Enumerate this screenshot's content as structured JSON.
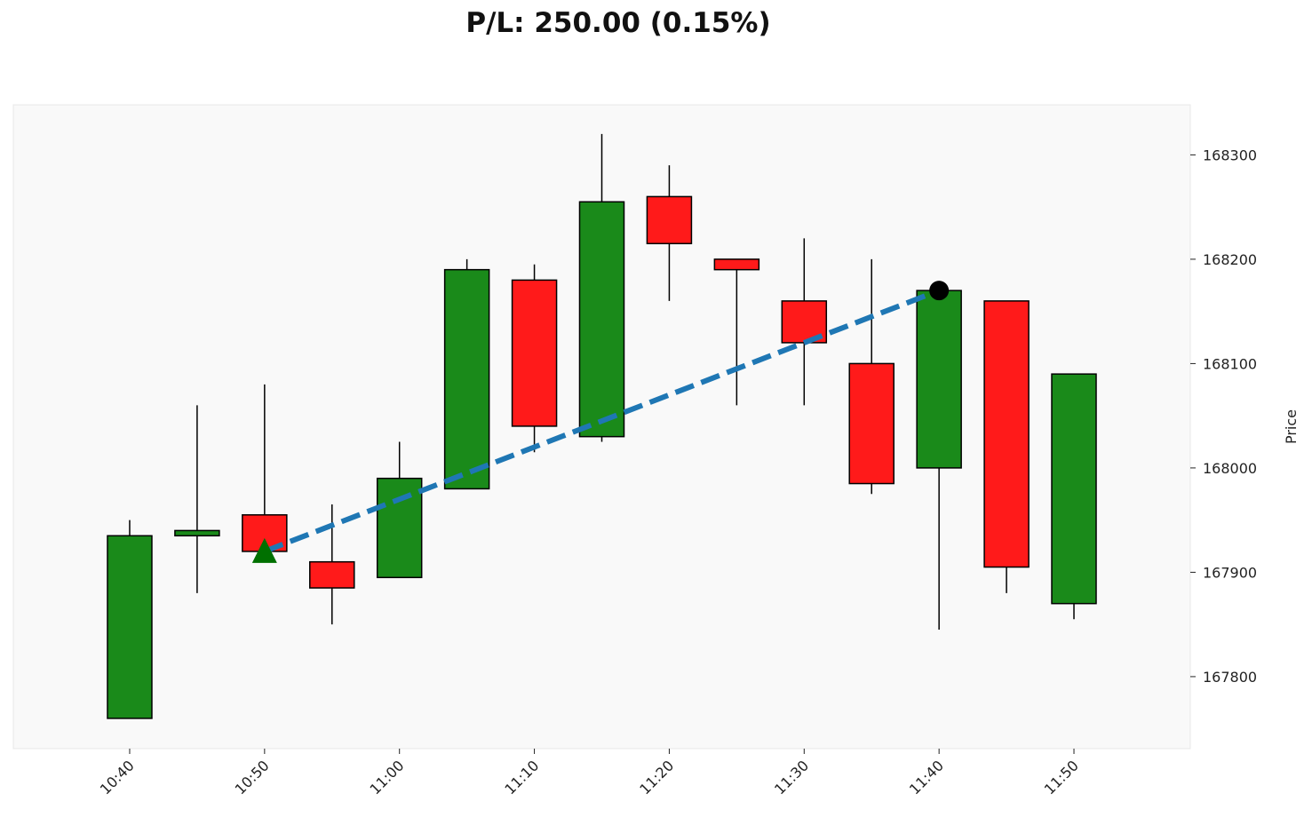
{
  "chart_data": {
    "type": "candlestick",
    "title": "P/L: 250.00 (0.15%)",
    "ylabel": "Price",
    "xlabel": "",
    "ylim": [
      167731,
      168348
    ],
    "x_tick_labels": [
      "10:40",
      "10:50",
      "11:00",
      "11:10",
      "11:20",
      "11:30",
      "11:40",
      "11:50"
    ],
    "y_ticks": [
      167800,
      167900,
      168000,
      168100,
      168200,
      168300
    ],
    "candles": [
      {
        "time": "10:40",
        "open": 167760,
        "high": 167950,
        "low": 167760,
        "close": 167935
      },
      {
        "time": "10:45",
        "open": 167935,
        "high": 168060,
        "low": 167880,
        "close": 167940
      },
      {
        "time": "10:50",
        "open": 167955,
        "high": 168080,
        "low": 167920,
        "close": 167920
      },
      {
        "time": "10:55",
        "open": 167910,
        "high": 167965,
        "low": 167850,
        "close": 167885
      },
      {
        "time": "11:00",
        "open": 167895,
        "high": 168025,
        "low": 167895,
        "close": 167990
      },
      {
        "time": "11:05",
        "open": 167980,
        "high": 168200,
        "low": 167980,
        "close": 168190
      },
      {
        "time": "11:10",
        "open": 168180,
        "high": 168195,
        "low": 168015,
        "close": 168040
      },
      {
        "time": "11:15",
        "open": 168030,
        "high": 168320,
        "low": 168025,
        "close": 168255
      },
      {
        "time": "11:20",
        "open": 168260,
        "high": 168290,
        "low": 168160,
        "close": 168215
      },
      {
        "time": "11:25",
        "open": 168200,
        "high": 168200,
        "low": 168060,
        "close": 168190
      },
      {
        "time": "11:30",
        "open": 168160,
        "high": 168220,
        "low": 168060,
        "close": 168120
      },
      {
        "time": "11:35",
        "open": 168100,
        "high": 168200,
        "low": 167975,
        "close": 167985
      },
      {
        "time": "11:40",
        "open": 168000,
        "high": 168170,
        "low": 167845,
        "close": 168170
      },
      {
        "time": "11:45",
        "open": 168160,
        "high": 168160,
        "low": 167880,
        "close": 167905
      },
      {
        "time": "11:50",
        "open": 167870,
        "high": 168090,
        "low": 167855,
        "close": 168090
      }
    ],
    "entry": {
      "time": "10:50",
      "price": 167920,
      "marker": "triangle-up"
    },
    "exit": {
      "time": "11:40",
      "price": 168170,
      "marker": "circle"
    },
    "colors": {
      "up": "#1a8a1a",
      "down": "#ff1a1a",
      "trade_line": "#1f77b4",
      "entry": "#007000",
      "exit": "#000000",
      "plot_bg": "#f9f9f9"
    },
    "grid": false
  }
}
